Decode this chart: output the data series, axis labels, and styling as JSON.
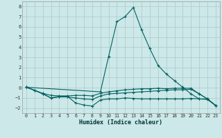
{
  "xlabel": "Humidex (Indice chaleur)",
  "ylabel": "",
  "xlim": [
    -0.5,
    23.5
  ],
  "ylim": [
    -2.5,
    8.5
  ],
  "yticks": [
    -2,
    -1,
    0,
    1,
    2,
    3,
    4,
    5,
    6,
    7,
    8
  ],
  "xticks": [
    0,
    1,
    2,
    3,
    4,
    5,
    6,
    7,
    8,
    9,
    10,
    11,
    12,
    13,
    14,
    15,
    16,
    17,
    18,
    19,
    20,
    21,
    22,
    23
  ],
  "bg_color": "#cce8e8",
  "grid_color": "#b0cccc",
  "line_color": "#006060",
  "series": [
    {
      "x": [
        0,
        1,
        2,
        3,
        4,
        5,
        6,
        7,
        8,
        9,
        10,
        11,
        12,
        13,
        14,
        15,
        16,
        17,
        18,
        19,
        20,
        21,
        22,
        23
      ],
      "y": [
        0.05,
        -0.25,
        -0.55,
        -0.75,
        -0.8,
        -0.8,
        -0.75,
        -0.75,
        -0.8,
        -0.55,
        -0.4,
        -0.3,
        -0.2,
        -0.15,
        -0.1,
        -0.1,
        -0.05,
        -0.1,
        -0.05,
        -0.05,
        -0.05,
        -0.6,
        -1.1,
        -1.75
      ],
      "marker": "+"
    },
    {
      "x": [
        0,
        1,
        2,
        3,
        4,
        5,
        6,
        7,
        8,
        9,
        10,
        11,
        12,
        13,
        14,
        15,
        16,
        17,
        18,
        19,
        20,
        21,
        22,
        23
      ],
      "y": [
        0.05,
        -0.25,
        -0.6,
        -1.0,
        -0.85,
        -0.85,
        -1.5,
        -1.7,
        -1.8,
        -1.2,
        -1.1,
        -1.1,
        -1.0,
        -1.05,
        -1.1,
        -1.1,
        -1.1,
        -1.1,
        -1.1,
        -1.1,
        -1.05,
        -1.1,
        -1.15,
        -1.75
      ],
      "marker": "+"
    },
    {
      "x": [
        0,
        1,
        2,
        3,
        4,
        5,
        6,
        7,
        8,
        9,
        10,
        11,
        12,
        13,
        14,
        15,
        16,
        17,
        18,
        19,
        20,
        21,
        22,
        23
      ],
      "y": [
        0.05,
        -0.25,
        -0.6,
        -1.0,
        -0.9,
        -0.9,
        -1.0,
        -1.1,
        -1.15,
        -0.8,
        -0.6,
        -0.55,
        -0.5,
        -0.45,
        -0.4,
        -0.35,
        -0.3,
        -0.25,
        -0.2,
        -0.2,
        -0.15,
        -0.6,
        -1.1,
        -1.75
      ],
      "marker": "+"
    },
    {
      "x": [
        0,
        9,
        10,
        11,
        12,
        13,
        14,
        15,
        16,
        17,
        18,
        19,
        20,
        21,
        22,
        23
      ],
      "y": [
        0.05,
        -0.4,
        3.1,
        6.5,
        7.0,
        7.9,
        5.7,
        3.85,
        2.2,
        1.35,
        0.7,
        0.05,
        -0.6,
        -1.1,
        -1.1,
        -1.75
      ],
      "marker": "+"
    }
  ]
}
